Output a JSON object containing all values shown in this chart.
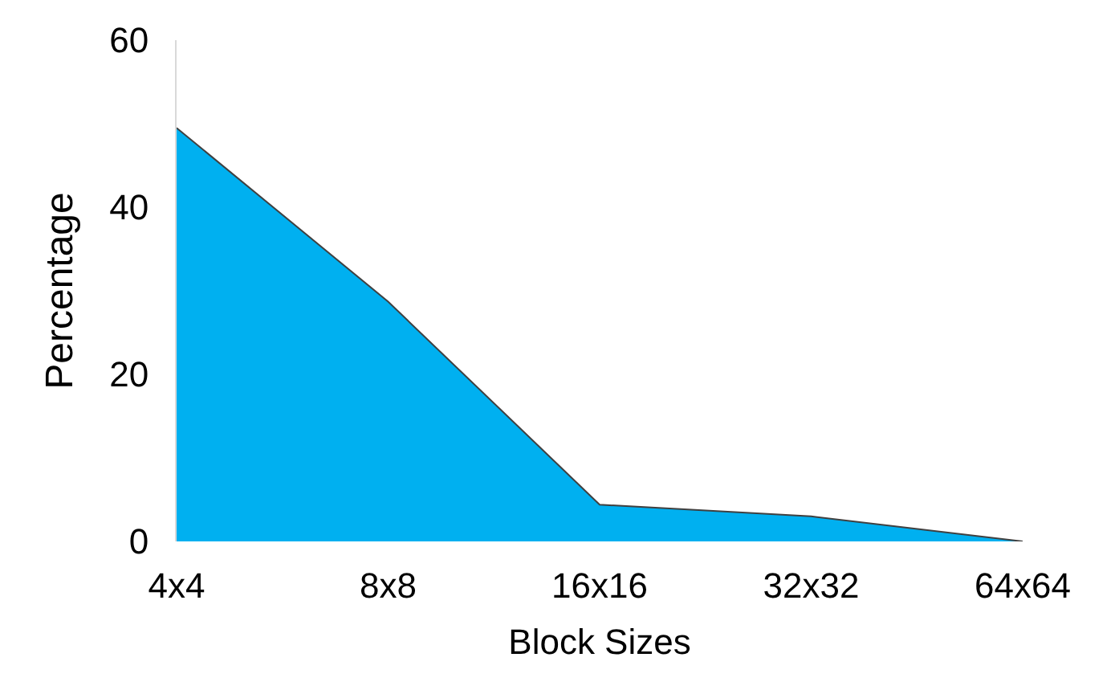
{
  "chart_data": {
    "type": "area",
    "xlabel": "Block Sizes",
    "ylabel": "Percentage",
    "categories": [
      "4x4",
      "8x8",
      "16x16",
      "32x32",
      "64x64"
    ],
    "series": [
      {
        "color": "#00b0f0",
        "values": [
          49.5,
          28.7,
          4.4,
          3.0,
          0
        ]
      }
    ],
    "ylim": [
      0,
      60
    ],
    "yticks": [
      0,
      20,
      40,
      60
    ],
    "legend": false
  }
}
